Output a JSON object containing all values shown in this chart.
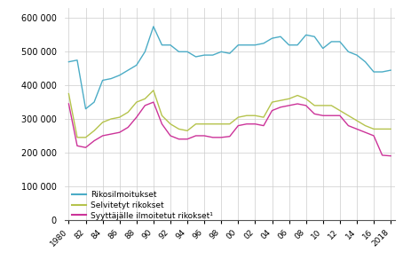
{
  "years": [
    1980,
    1981,
    1982,
    1983,
    1984,
    1985,
    1986,
    1987,
    1988,
    1989,
    1990,
    1991,
    1992,
    1993,
    1994,
    1995,
    1996,
    1997,
    1998,
    1999,
    2000,
    2001,
    2002,
    2003,
    2004,
    2005,
    2006,
    2007,
    2008,
    2009,
    2010,
    2011,
    2012,
    2013,
    2014,
    2015,
    2016,
    2017,
    2018
  ],
  "rikosilmoitukset": [
    470000,
    475000,
    330000,
    350000,
    415000,
    420000,
    430000,
    445000,
    460000,
    500000,
    575000,
    520000,
    520000,
    500000,
    500000,
    485000,
    490000,
    490000,
    500000,
    495000,
    520000,
    520000,
    520000,
    525000,
    540000,
    545000,
    520000,
    520000,
    550000,
    545000,
    510000,
    530000,
    530000,
    500000,
    490000,
    470000,
    440000,
    440000,
    445000
  ],
  "selvitetyt_rikokset": [
    375000,
    245000,
    245000,
    265000,
    290000,
    300000,
    305000,
    320000,
    350000,
    360000,
    385000,
    310000,
    285000,
    270000,
    265000,
    285000,
    285000,
    285000,
    285000,
    285000,
    305000,
    310000,
    310000,
    305000,
    350000,
    355000,
    360000,
    370000,
    360000,
    340000,
    340000,
    340000,
    325000,
    310000,
    295000,
    280000,
    270000,
    270000,
    270000
  ],
  "syyttajalle_ilmoitetut": [
    345000,
    220000,
    215000,
    235000,
    250000,
    255000,
    260000,
    275000,
    305000,
    340000,
    350000,
    285000,
    250000,
    240000,
    240000,
    250000,
    250000,
    245000,
    245000,
    248000,
    280000,
    285000,
    285000,
    280000,
    325000,
    335000,
    340000,
    345000,
    340000,
    315000,
    310000,
    310000,
    310000,
    280000,
    270000,
    260000,
    250000,
    192000,
    190000
  ],
  "color_blue": "#4bacc6",
  "color_yellow": "#b5c34c",
  "color_magenta": "#cc3399",
  "legend_labels": [
    "Rikosilmoitukset",
    "Selvitetyt rikokset",
    "Syyttäjälle ilmoitetut rikokset¹"
  ],
  "yticks": [
    0,
    100000,
    200000,
    300000,
    400000,
    500000,
    600000
  ],
  "xtick_years": [
    1980,
    1982,
    1984,
    1986,
    1988,
    1990,
    1992,
    1994,
    1996,
    1998,
    2000,
    2002,
    2004,
    2006,
    2008,
    2010,
    2012,
    2014,
    2016,
    2018
  ],
  "xtick_labels": [
    "1980",
    "82",
    "84",
    "86",
    "88",
    "90",
    "92",
    "94",
    "96",
    "98",
    "00",
    "02",
    "04",
    "06",
    "08",
    "10",
    "12",
    "14",
    "16",
    "2018"
  ],
  "ylim": [
    0,
    630000
  ],
  "xlim_min": 1979.5,
  "xlim_max": 2018.5
}
